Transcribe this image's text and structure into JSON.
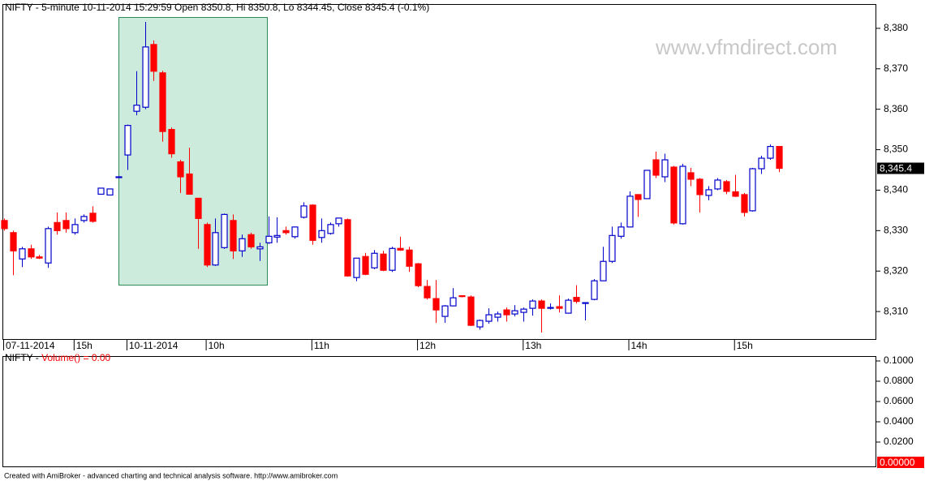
{
  "chart_data": [
    {
      "type": "candlestick",
      "title": "NIFTY - 5-minute 10-11-2014 15:29:59 Open 8350.8, Hi 8350.8, Lo 8344.45, Close 8345.4 (-0.1%)",
      "watermark": "www.vfmdirect.com",
      "categories": [
        "07-11-2014",
        null,
        null,
        null,
        null,
        null,
        null,
        null,
        "15h",
        null,
        null,
        null,
        null,
        null,
        "10-11-2014",
        null,
        null,
        null,
        null,
        null,
        null,
        null,
        null,
        "10h",
        null,
        null,
        null,
        null,
        null,
        null,
        null,
        null,
        null,
        null,
        null,
        "11h",
        null,
        null,
        null,
        null,
        null,
        null,
        null,
        null,
        null,
        null,
        null,
        "12h",
        null,
        null,
        null,
        null,
        null,
        null,
        null,
        null,
        null,
        null,
        null,
        "13h",
        null,
        null,
        null,
        null,
        null,
        null,
        null,
        null,
        null,
        null,
        null,
        "14h",
        null,
        null,
        null,
        null,
        null,
        null,
        null,
        null,
        null,
        null,
        null,
        "15h",
        null,
        null,
        null,
        null,
        null
      ],
      "open": [
        8332.5,
        8329.5,
        8323,
        8325.5,
        8323.5,
        8322,
        8332,
        8332.5,
        8329.5,
        8332.5,
        8334.3,
        8339,
        8338.8,
        8343.2,
        8348.7,
        8359.5,
        8360.5,
        8376,
        8369,
        8355,
        8347,
        8344,
        8338,
        8331.5,
        8321.5,
        8325.8,
        8332.5,
        8325,
        8329,
        8325.5,
        8327,
        8328.4,
        8330,
        8328.5,
        8333.3,
        8336.3,
        8328.3,
        8329.3,
        8331.7,
        8332.7,
        8318.4,
        8323.6,
        8320.8,
        8324.2,
        8320.2,
        8325.6,
        8325.2,
        8321.8,
        8316.2,
        8313.2,
        8308.8,
        8311.4,
        8313.9,
        8313.6,
        8306.2,
        8307.6,
        8308.6,
        8310.4,
        8309.4,
        8309.8,
        8310.8,
        8312.6,
        8310.8,
        8311.2,
        8309.6,
        8313.5,
        8312.1,
        8313,
        8317.6,
        8322.4,
        8328.6,
        8330.9,
        8338.9,
        8337.9,
        8347.5,
        8343.3,
        8345.7,
        8331.7,
        8344.3,
        8342.7,
        8338.7,
        8340.3,
        8342.1,
        8339.6,
        8338.9,
        8334.9,
        8345.3,
        8347.9,
        8350.8
      ],
      "high": [
        8333,
        8330,
        8326,
        8326.5,
        8324,
        8331,
        8334.5,
        8334.5,
        8333,
        8334,
        8336,
        8340.6,
        8340.4,
        8343.5,
        8356.2,
        8369.4,
        8381.6,
        8377,
        8369.5,
        8355.5,
        8347.5,
        8350.5,
        8338,
        8332,
        8333,
        8334.2,
        8334,
        8329,
        8329.5,
        8327,
        8333.5,
        8333.3,
        8331,
        8331,
        8337,
        8336.5,
        8333,
        8332,
        8333.2,
        8333,
        8323.3,
        8324.5,
        8325.2,
        8325,
        8326,
        8328.5,
        8326,
        8322,
        8317.8,
        8317.8,
        8311.6,
        8315.8,
        8314,
        8314,
        8308,
        8310.8,
        8310,
        8311,
        8311.6,
        8311,
        8313,
        8313,
        8312,
        8314,
        8313.2,
        8316.5,
        8312.3,
        8318,
        8326,
        8331,
        8332,
        8339.7,
        8339,
        8345,
        8349.5,
        8349,
        8346,
        8346.5,
        8345.5,
        8343,
        8341,
        8343,
        8342.5,
        8343.8,
        8339.3,
        8345.5,
        8348.5,
        8351.3,
        8350.8
      ],
      "low": [
        8330,
        8319,
        8321,
        8323,
        8323,
        8320.8,
        8329,
        8329.5,
        8329,
        8332,
        8332,
        8338.9,
        8338.7,
        8343,
        8345,
        8358.5,
        8360,
        8367,
        8352,
        8348,
        8339.3,
        8339,
        8325.5,
        8321,
        8321.3,
        8325.5,
        8323,
        8323.5,
        8325.5,
        8322.5,
        8326.7,
        8327,
        8329,
        8328,
        8333,
        8326.5,
        8327,
        8329,
        8331,
        8318.6,
        8317.5,
        8319,
        8320.5,
        8320,
        8319.8,
        8325,
        8319.8,
        8316,
        8313,
        8307.2,
        8307.2,
        8311.3,
        8313.5,
        8306.4,
        8305.5,
        8307,
        8307.5,
        8307.5,
        8308.8,
        8307.5,
        8309,
        8304.8,
        8310.5,
        8309.8,
        8309.5,
        8312,
        8307.8,
        8312.8,
        8317.5,
        8322,
        8328,
        8330.8,
        8333.4,
        8337.8,
        8343,
        8342,
        8331.5,
        8331.5,
        8341,
        8334.5,
        8337.5,
        8340,
        8339,
        8338.3,
        8333.5,
        8334.7,
        8344,
        8347.5,
        8344.45
      ],
      "close": [
        8330.5,
        8325,
        8325.5,
        8323.5,
        8323.2,
        8330.5,
        8330,
        8330.5,
        8331.5,
        8333.5,
        8332.3,
        8340.5,
        8340.3,
        8343.3,
        8356,
        8361,
        8375.4,
        8369.4,
        8354.5,
        8349,
        8343.3,
        8339,
        8333,
        8321.5,
        8329.5,
        8334,
        8325,
        8328,
        8326,
        8326,
        8328.6,
        8328.8,
        8329.5,
        8330.9,
        8336.1,
        8327.6,
        8330,
        8331.5,
        8333.1,
        8318.8,
        8323.2,
        8319.2,
        8324.4,
        8320.2,
        8325.6,
        8325.2,
        8321.2,
        8316.4,
        8313.4,
        8310.4,
        8311.4,
        8313.4,
        8313.7,
        8306.6,
        8307.8,
        8309.2,
        8309.4,
        8309.2,
        8310.2,
        8310.6,
        8312.6,
        8310.8,
        8311,
        8310.8,
        8312.8,
        8312.5,
        8312.2,
        8317.6,
        8322.4,
        8328.8,
        8330.9,
        8338.5,
        8337.7,
        8344.9,
        8343.7,
        8347.5,
        8331.9,
        8345.9,
        8342.7,
        8338.9,
        8340.1,
        8342.5,
        8339.7,
        8338.5,
        8334.5,
        8345.3,
        8347.9,
        8350.8,
        8345.4
      ],
      "up_color": "#0000cc",
      "down_color": "#ff0000",
      "ylim": [
        8303.2,
        8386
      ],
      "yticks": [
        {
          "value": 8310,
          "label": "8,310"
        },
        {
          "value": 8320,
          "label": "8,320"
        },
        {
          "value": 8330,
          "label": "8,330"
        },
        {
          "value": 8340,
          "label": "8,340"
        },
        {
          "value": 8350,
          "label": "8,350"
        },
        {
          "value": 8360,
          "label": "8,360"
        },
        {
          "value": 8370,
          "label": "8,370"
        },
        {
          "value": 8380,
          "label": "8,380"
        }
      ],
      "last_label": {
        "value": 8345.4,
        "label": "8,345.4"
      },
      "last_color": "#000000",
      "grid": false
    },
    {
      "type": "bar",
      "title": "NIFTY - ",
      "subtitle": "Volume() = 0.00",
      "ylim": [
        -0.0048,
        0.104
      ],
      "yticks": [
        {
          "value": 0.02,
          "label": "0.0200"
        },
        {
          "value": 0.04,
          "label": "0.0400"
        },
        {
          "value": 0.06,
          "label": "0.0600"
        },
        {
          "value": 0.08,
          "label": "0.0800"
        },
        {
          "value": 0.1,
          "label": "0.1000"
        }
      ],
      "last_label": {
        "value": 0,
        "label": "0.00000"
      },
      "last_color": "#ff0000",
      "grid": false
    }
  ],
  "footer": "Created with AmiBroker - advanced charting and technical analysis software. http://www.amibroker.com"
}
